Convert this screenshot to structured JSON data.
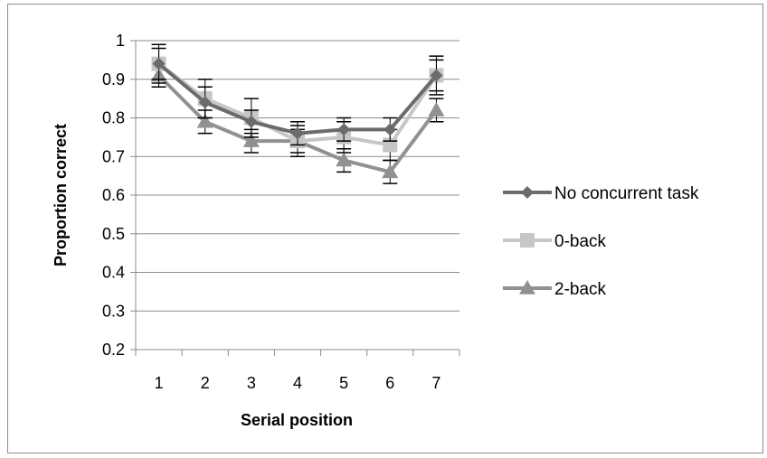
{
  "chart_data": {
    "type": "line",
    "x": [
      1,
      2,
      3,
      4,
      5,
      6,
      7
    ],
    "categories": [
      "1",
      "2",
      "3",
      "4",
      "5",
      "6",
      "7"
    ],
    "xlabel": "Serial position",
    "ylabel": "Proportion correct",
    "ylim": [
      0.2,
      1
    ],
    "yticks": [
      0.2,
      0.3,
      0.4,
      0.5,
      0.6,
      0.7,
      0.8,
      0.9,
      1
    ],
    "ytick_labels": [
      "0.2",
      "0.3",
      "0.4",
      "0.5",
      "0.6",
      "0.7",
      "0.8",
      "0.9",
      "1"
    ],
    "grid": "horizontal",
    "legend_position": "right",
    "series": [
      {
        "name": "No concurrent task",
        "marker": "diamond",
        "color": "#6b6b6b",
        "values": [
          0.94,
          0.84,
          0.79,
          0.76,
          0.77,
          0.77,
          0.91
        ],
        "error": [
          0.05,
          0.04,
          0.03,
          0.03,
          0.03,
          0.03,
          0.04
        ]
      },
      {
        "name": "0-back",
        "marker": "square",
        "color": "#c6c6c6",
        "values": [
          0.94,
          0.85,
          0.8,
          0.74,
          0.75,
          0.73,
          0.91
        ],
        "error": [
          0.04,
          0.05,
          0.05,
          0.04,
          0.04,
          0.04,
          0.05
        ]
      },
      {
        "name": "2-back",
        "marker": "triangle",
        "color": "#919191",
        "values": [
          0.91,
          0.79,
          0.74,
          0.74,
          0.69,
          0.66,
          0.82
        ],
        "error": [
          0.03,
          0.03,
          0.03,
          0.03,
          0.03,
          0.03,
          0.03
        ]
      }
    ]
  }
}
